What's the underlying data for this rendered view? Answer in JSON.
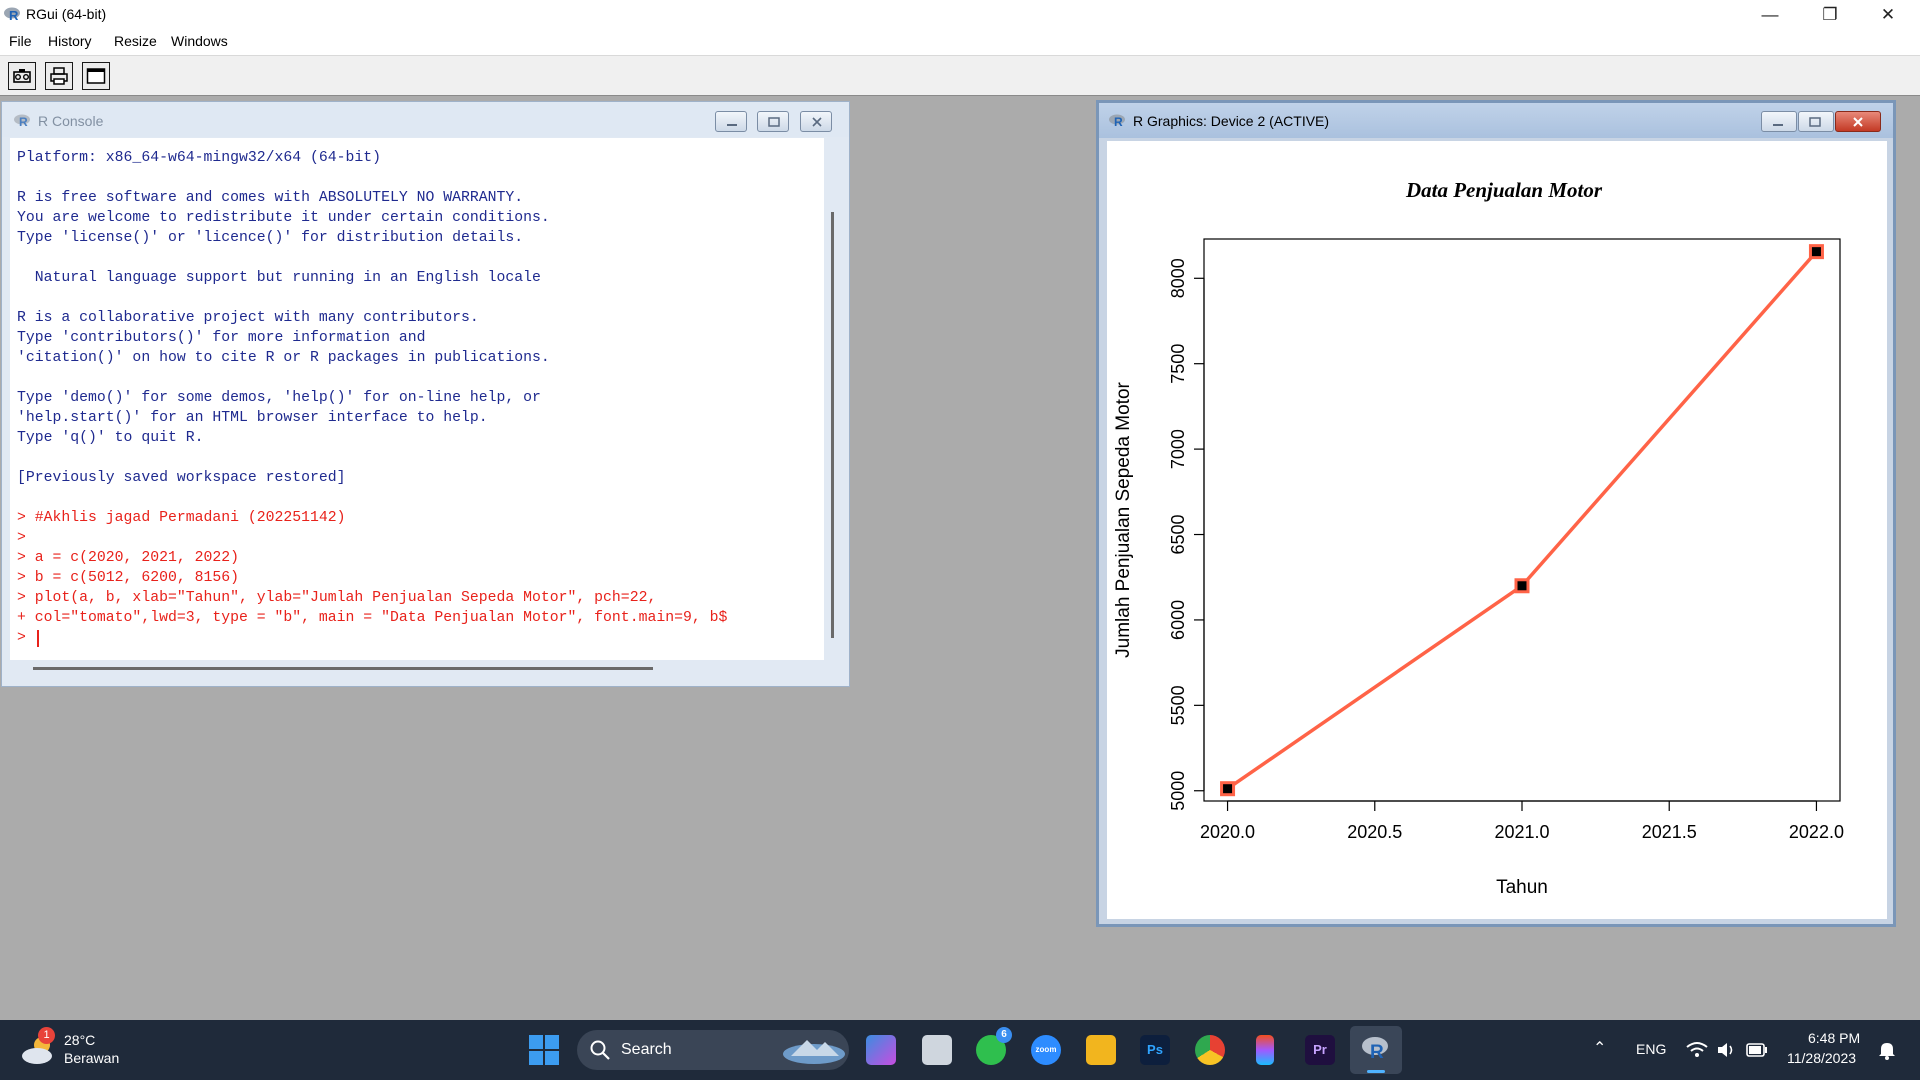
{
  "window": {
    "title": "RGui (64-bit)"
  },
  "menu": [
    "File",
    "History",
    "Resize",
    "Windows"
  ],
  "console": {
    "title": "R Console",
    "lines": [
      {
        "t": "Platform: x86_64-w64-mingw32/x64 (64-bit)",
        "c": "blue"
      },
      {
        "t": "",
        "c": "blue"
      },
      {
        "t": "R is free software and comes with ABSOLUTELY NO WARRANTY.",
        "c": "blue"
      },
      {
        "t": "You are welcome to redistribute it under certain conditions.",
        "c": "blue"
      },
      {
        "t": "Type 'license()' or 'licence()' for distribution details.",
        "c": "blue"
      },
      {
        "t": "",
        "c": "blue"
      },
      {
        "t": "  Natural language support but running in an English locale",
        "c": "blue"
      },
      {
        "t": "",
        "c": "blue"
      },
      {
        "t": "R is a collaborative project with many contributors.",
        "c": "blue"
      },
      {
        "t": "Type 'contributors()' for more information and",
        "c": "blue"
      },
      {
        "t": "'citation()' on how to cite R or R packages in publications.",
        "c": "blue"
      },
      {
        "t": "",
        "c": "blue"
      },
      {
        "t": "Type 'demo()' for some demos, 'help()' for on-line help, or",
        "c": "blue"
      },
      {
        "t": "'help.start()' for an HTML browser interface to help.",
        "c": "blue"
      },
      {
        "t": "Type 'q()' to quit R.",
        "c": "blue"
      },
      {
        "t": "",
        "c": "blue"
      },
      {
        "t": "[Previously saved workspace restored]",
        "c": "blue"
      },
      {
        "t": "",
        "c": "blue"
      },
      {
        "t": "> #Akhlis jagad Permadani (202251142)",
        "c": "red"
      },
      {
        "t": ">",
        "c": "red"
      },
      {
        "t": "> a = c(2020, 2021, 2022)",
        "c": "red"
      },
      {
        "t": "> b = c(5012, 6200, 8156)",
        "c": "red"
      },
      {
        "t": "> plot(a, b, xlab=\"Tahun\", ylab=\"Jumlah Penjualan Sepeda Motor\", pch=22,",
        "c": "red"
      },
      {
        "t": "+ col=\"tomato\",lwd=3, type = \"b\", main = \"Data Penjualan Motor\", font.main=9, b$",
        "c": "red"
      },
      {
        "t": ">",
        "c": "red"
      }
    ]
  },
  "graphics": {
    "title": "R Graphics: Device 2 (ACTIVE)"
  },
  "chart_data": {
    "type": "line",
    "title": "Data Penjualan Motor",
    "xlabel": "Tahun",
    "ylabel": "Jumlah Penjualan Sepeda Motor",
    "x": [
      2020,
      2021,
      2022
    ],
    "y": [
      5012,
      6200,
      8156
    ],
    "xlim": [
      2019.92,
      2022.08
    ],
    "ylim": [
      4940,
      8230
    ],
    "xticks": [
      2020.0,
      2020.5,
      2021.0,
      2021.5,
      2022.0
    ],
    "xtick_labels": [
      "2020.0",
      "2020.5",
      "2021.0",
      "2021.5",
      "2022.0"
    ],
    "yticks": [
      5000,
      5500,
      6000,
      6500,
      7000,
      7500,
      8000
    ],
    "ytick_labels": [
      "5000",
      "5500",
      "6000",
      "6500",
      "7000",
      "7500",
      "8000"
    ],
    "line_color": "#ff6347",
    "marker_fill": "#000000",
    "grid": false
  },
  "taskbar": {
    "weather_temp": "28°C",
    "weather_desc": "Berawan",
    "weather_badge": "1",
    "search_label": "Search",
    "whatsapp_badge": "6",
    "lang": "ENG",
    "time": "6:48 PM",
    "date": "11/28/2023",
    "apps": [
      "zoom",
      "Ps",
      "Pr"
    ]
  }
}
